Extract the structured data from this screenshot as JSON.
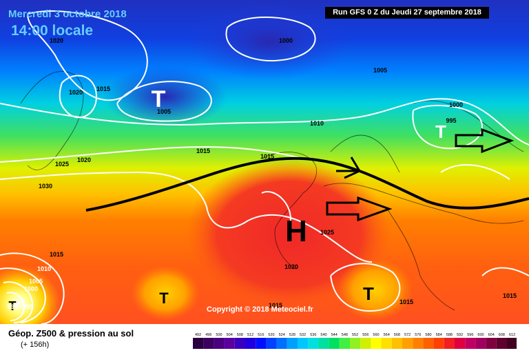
{
  "header": {
    "date": "Mercredi 3 octobre 2018",
    "time": "14:00 locale",
    "run": "Run GFS 0 Z du Jeudi 27 septembre 2018"
  },
  "footer": {
    "title": "Géop. Z500 & pression au sol",
    "subtitle": "(+ 156h)",
    "copyright": "Copyright © 2018 Meteociel.fr"
  },
  "legend": {
    "ticks": [
      "492",
      "496",
      "500",
      "504",
      "508",
      "512",
      "516",
      "520",
      "524",
      "528",
      "532",
      "536",
      "540",
      "544",
      "548",
      "552",
      "556",
      "560",
      "564",
      "568",
      "572",
      "576",
      "580",
      "584",
      "588",
      "592",
      "596",
      "600",
      "604",
      "608",
      "612"
    ],
    "colors": [
      "#2a0040",
      "#3b0060",
      "#4a0080",
      "#5a00a0",
      "#3a00c0",
      "#2000e0",
      "#0010ff",
      "#0040ff",
      "#0070ff",
      "#00a0ff",
      "#00c8ff",
      "#00e0e0",
      "#00e0a0",
      "#00e060",
      "#40f040",
      "#90f020",
      "#d0f000",
      "#ffff00",
      "#ffe000",
      "#ffc000",
      "#ffa000",
      "#ff8000",
      "#ff6000",
      "#ff4000",
      "#f02020",
      "#e00040",
      "#c00060",
      "#a00060",
      "#800040",
      "#600030",
      "#400020"
    ]
  },
  "map_labels": {
    "centers": [
      {
        "letter": "T",
        "kind": "low",
        "color": "#ffffff"
      },
      {
        "letter": "T",
        "kind": "low",
        "color": "#ffffff"
      },
      {
        "letter": "H",
        "kind": "high",
        "color": "#000000"
      },
      {
        "letter": "T",
        "kind": "low",
        "color": "#000000"
      },
      {
        "letter": "T",
        "kind": "low",
        "color": "#000000"
      },
      {
        "letter": "T",
        "kind": "low",
        "color": "#000000"
      }
    ],
    "isobars": [
      "1020",
      "1015",
      "1020",
      "1005",
      "1000",
      "1005",
      "1010",
      "1000",
      "995",
      "1015",
      "1020",
      "1025",
      "1030",
      "1015",
      "1015",
      "1010",
      "1005",
      "1000",
      "995",
      "995",
      "1025",
      "1020",
      "1015",
      "1015",
      "1015"
    ]
  }
}
